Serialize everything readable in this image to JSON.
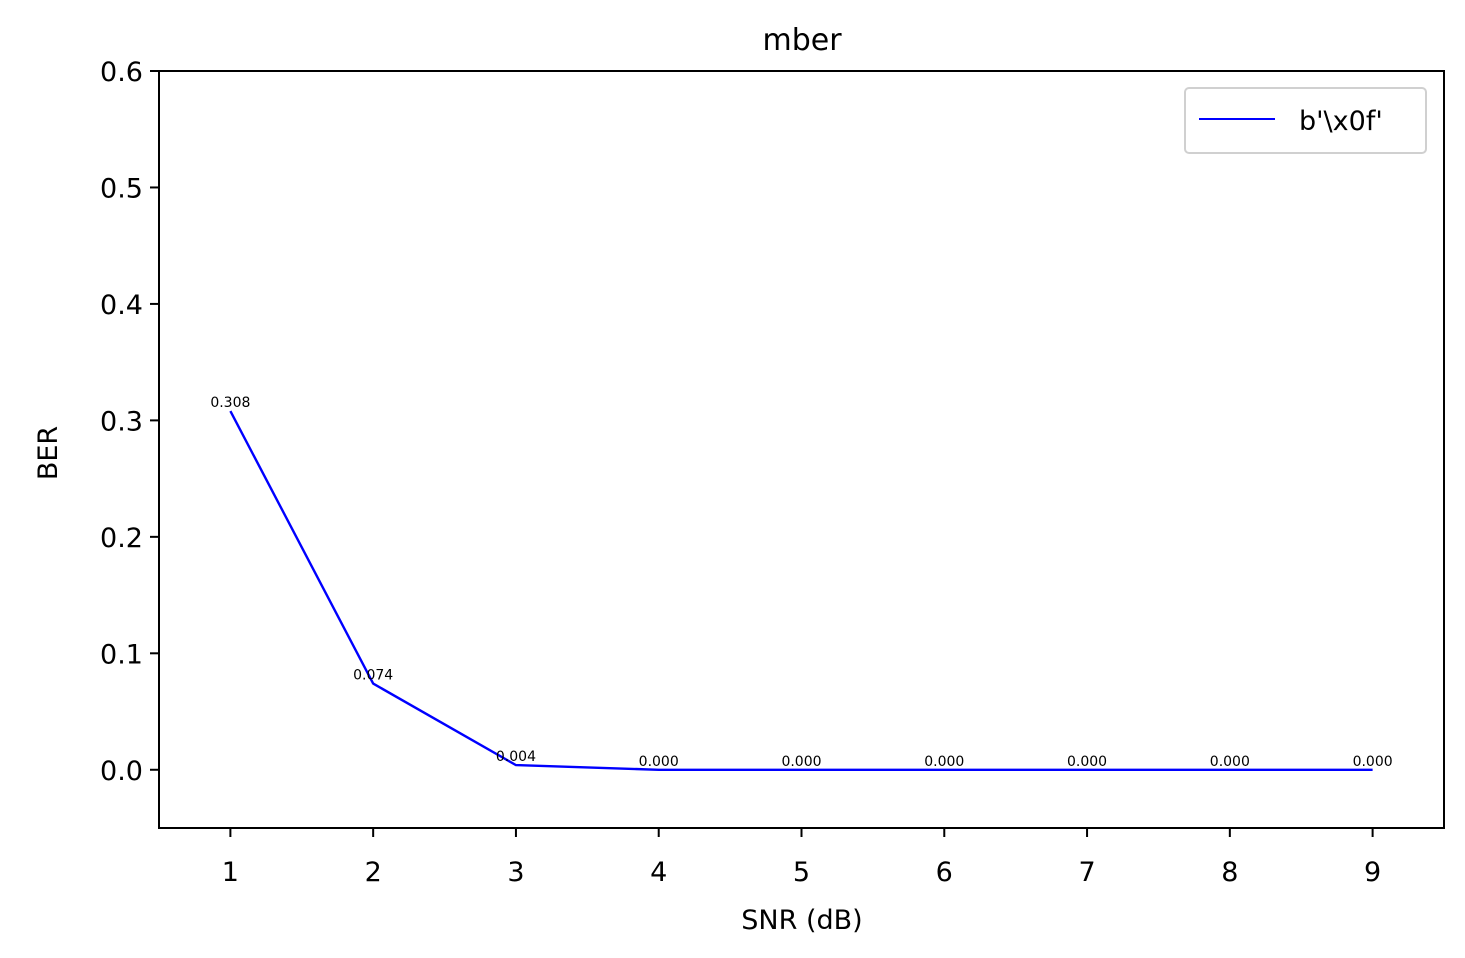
{
  "chart_data": {
    "type": "line",
    "title": "mber",
    "xlabel": "SNR (dB)",
    "ylabel": "BER",
    "x": [
      1,
      2,
      3,
      4,
      5,
      6,
      7,
      8,
      9
    ],
    "xticks": [
      "1",
      "2",
      "3",
      "4",
      "5",
      "6",
      "7",
      "8",
      "9"
    ],
    "yticks": [
      "0.0",
      "0.1",
      "0.2",
      "0.3",
      "0.4",
      "0.5",
      "0.6"
    ],
    "ytick_values": [
      0.0,
      0.1,
      0.2,
      0.3,
      0.4,
      0.5,
      0.6
    ],
    "xlim": [
      0.5,
      9.5
    ],
    "ylim": [
      -0.05,
      0.6
    ],
    "grid": false,
    "legend_position": "top-right",
    "series": [
      {
        "name": "b'\\x0f'",
        "color": "#0000ff",
        "values": [
          0.308,
          0.074,
          0.004,
          0.0,
          0.0,
          0.0,
          0.0,
          0.0,
          0.0
        ],
        "labels": [
          "0.308",
          "0.074",
          "0.004",
          "0.000",
          "0.000",
          "0.000",
          "0.000",
          "0.000",
          "0.000"
        ]
      }
    ]
  }
}
